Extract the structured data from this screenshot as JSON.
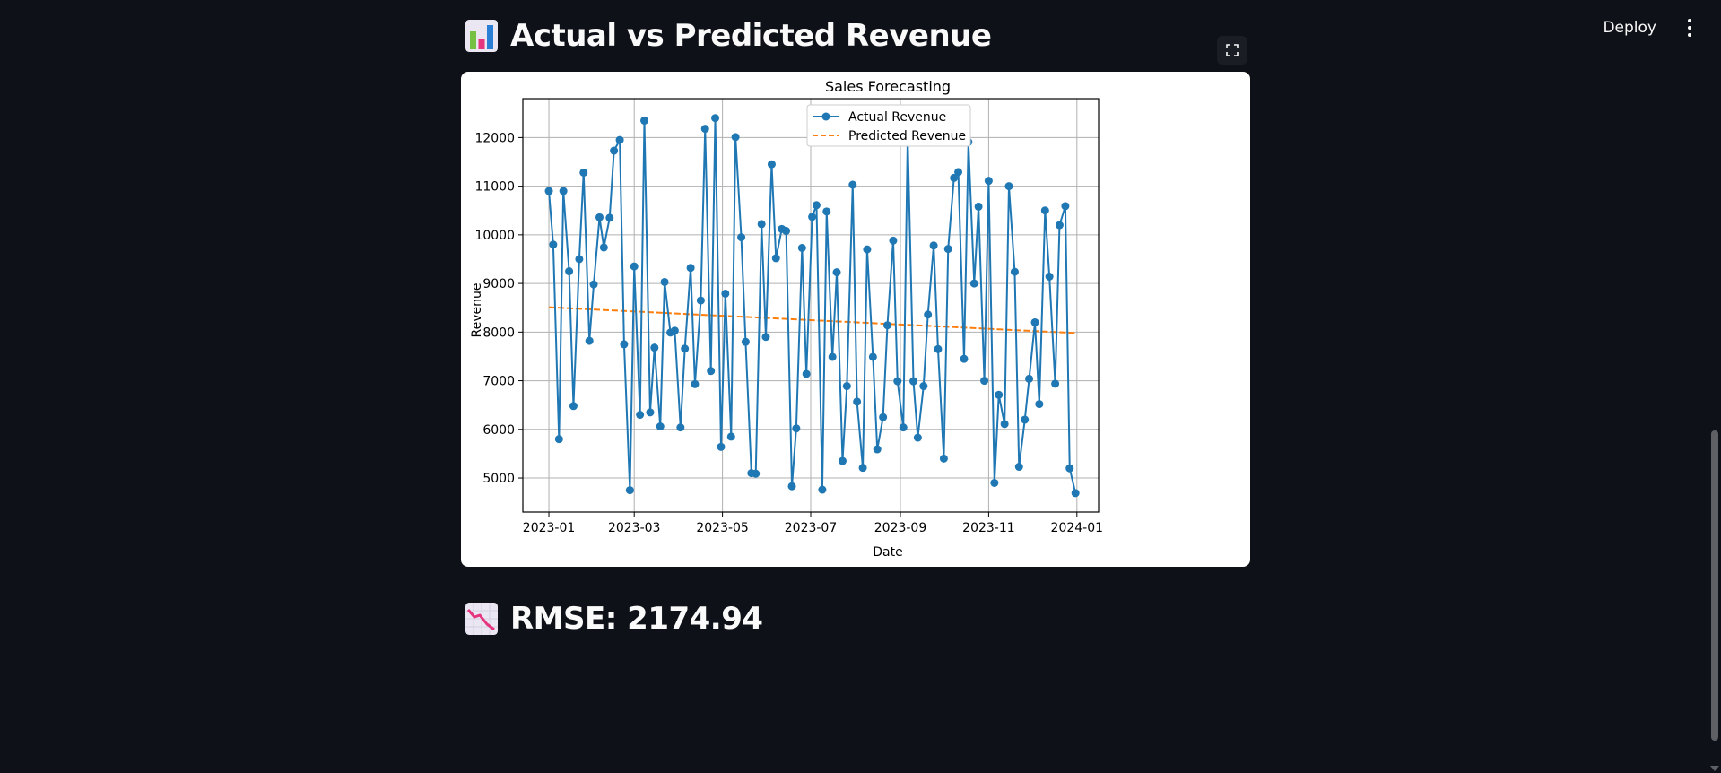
{
  "app": {
    "deploy_label": "Deploy"
  },
  "header": {
    "title": "Actual vs Predicted Revenue",
    "icon": "bar-chart-emoji"
  },
  "metric": {
    "text": "RMSE: 2174.94",
    "icon": "chart-decreasing-emoji"
  },
  "chart_data": {
    "type": "line",
    "title": "Sales Forecasting",
    "xlabel": "Date",
    "ylabel": "Revenue",
    "x_range": [
      "2022-12-14",
      "2024-01-16"
    ],
    "ylim": [
      4300,
      12800
    ],
    "x_ticks": [
      "2023-01",
      "2023-03",
      "2023-05",
      "2023-07",
      "2023-09",
      "2023-11",
      "2024-01"
    ],
    "y_ticks": [
      5000,
      6000,
      7000,
      8000,
      9000,
      10000,
      11000,
      12000
    ],
    "grid": true,
    "legend_position": "top-center",
    "series": [
      {
        "name": "Actual Revenue",
        "style": "line-marker",
        "color": "#1f77b4",
        "x": [
          "2023-01-01",
          "2023-01-04",
          "2023-01-08",
          "2023-01-11",
          "2023-01-15",
          "2023-01-18",
          "2023-01-22",
          "2023-01-25",
          "2023-01-29",
          "2023-02-01",
          "2023-02-05",
          "2023-02-08",
          "2023-02-12",
          "2023-02-15",
          "2023-02-19",
          "2023-02-22",
          "2023-02-26",
          "2023-03-01",
          "2023-03-05",
          "2023-03-08",
          "2023-03-12",
          "2023-03-15",
          "2023-03-19",
          "2023-03-22",
          "2023-03-26",
          "2023-03-29",
          "2023-04-02",
          "2023-04-05",
          "2023-04-09",
          "2023-04-12",
          "2023-04-16",
          "2023-04-19",
          "2023-04-23",
          "2023-04-26",
          "2023-04-30",
          "2023-05-03",
          "2023-05-07",
          "2023-05-10",
          "2023-05-14",
          "2023-05-17",
          "2023-05-21",
          "2023-05-24",
          "2023-05-28",
          "2023-05-31",
          "2023-06-04",
          "2023-06-07",
          "2023-06-11",
          "2023-06-14",
          "2023-06-18",
          "2023-06-21",
          "2023-06-25",
          "2023-06-28",
          "2023-07-02",
          "2023-07-05",
          "2023-07-09",
          "2023-07-12",
          "2023-07-16",
          "2023-07-19",
          "2023-07-23",
          "2023-07-26",
          "2023-07-30",
          "2023-08-02",
          "2023-08-06",
          "2023-08-09",
          "2023-08-13",
          "2023-08-16",
          "2023-08-20",
          "2023-08-23",
          "2023-08-27",
          "2023-08-30",
          "2023-09-03",
          "2023-09-06",
          "2023-09-10",
          "2023-09-13",
          "2023-09-17",
          "2023-09-20",
          "2023-09-24",
          "2023-09-27",
          "2023-10-01",
          "2023-10-04",
          "2023-10-08",
          "2023-10-11",
          "2023-10-15",
          "2023-10-18",
          "2023-10-22",
          "2023-10-25",
          "2023-10-29",
          "2023-11-01",
          "2023-11-05",
          "2023-11-08",
          "2023-11-12",
          "2023-11-15",
          "2023-11-19",
          "2023-11-22",
          "2023-11-26",
          "2023-11-29",
          "2023-12-03",
          "2023-12-06",
          "2023-12-10",
          "2023-12-13",
          "2023-12-17",
          "2023-12-20",
          "2023-12-24",
          "2023-12-27",
          "2023-12-31"
        ],
        "y": [
          10900,
          9800,
          5800,
          10900,
          9250,
          6480,
          9500,
          11280,
          7820,
          8980,
          10360,
          9740,
          10350,
          11730,
          11950,
          7750,
          4750,
          9350,
          6300,
          12350,
          6350,
          7680,
          6060,
          9030,
          7990,
          8030,
          6040,
          7660,
          9320,
          6930,
          8650,
          12180,
          7200,
          12400,
          5640,
          8790,
          5850,
          12010,
          9950,
          7800,
          5100,
          5090,
          10220,
          7900,
          11450,
          9520,
          10120,
          10080,
          4830,
          6020,
          9730,
          7140,
          10370,
          10610,
          4760,
          10480,
          7490,
          9230,
          5350,
          6890,
          11030,
          6570,
          5210,
          9700,
          7490,
          5590,
          6250,
          8140,
          9880,
          6990,
          6040,
          12030,
          6990,
          5830,
          6890,
          8360,
          9780,
          7650,
          5400,
          9710,
          11170,
          11290,
          7450,
          11910,
          9000,
          10580,
          7000,
          11110,
          4900,
          6710,
          6110,
          11000,
          9240,
          5230,
          6200,
          7040,
          8200,
          6520,
          10500,
          9140,
          6940,
          10200,
          10590,
          5200,
          4690
        ]
      },
      {
        "name": "Predicted Revenue",
        "style": "dashed",
        "color": "#ff7f0e",
        "x": [
          "2023-01-01",
          "2023-12-31"
        ],
        "y": [
          8510,
          7980
        ]
      }
    ]
  }
}
